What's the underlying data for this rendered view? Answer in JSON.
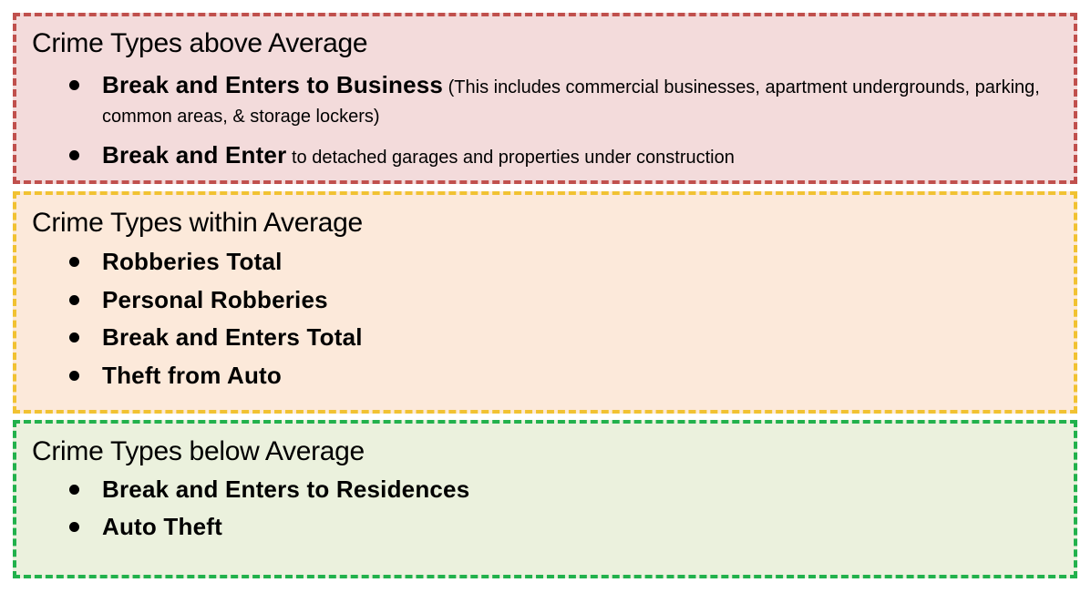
{
  "colors": {
    "above_background": "#f3dbdb",
    "above_border": "#c0504d",
    "within_background": "#fce9da",
    "within_border": "#f1c232",
    "below_background": "#ebf1dd",
    "below_border": "#22b14c"
  },
  "above": {
    "title": "Crime Types above Average",
    "items": [
      {
        "strong": "Break and Enters to Business",
        "detail": " (This includes commercial businesses, apartment undergrounds, parking, common areas, & storage lockers)"
      },
      {
        "strong": "Break and Enter",
        "detail": " to detached garages and properties under construction"
      }
    ]
  },
  "within": {
    "title": "Crime Types within Average",
    "items": [
      {
        "strong": "Robberies Total"
      },
      {
        "strong": "Personal Robberies"
      },
      {
        "strong": "Break and Enters Total"
      },
      {
        "strong": "Theft from Auto"
      }
    ]
  },
  "below": {
    "title": "Crime Types below Average",
    "items": [
      {
        "strong": "Break and Enters to Residences"
      },
      {
        "strong": "Auto Theft"
      }
    ]
  }
}
